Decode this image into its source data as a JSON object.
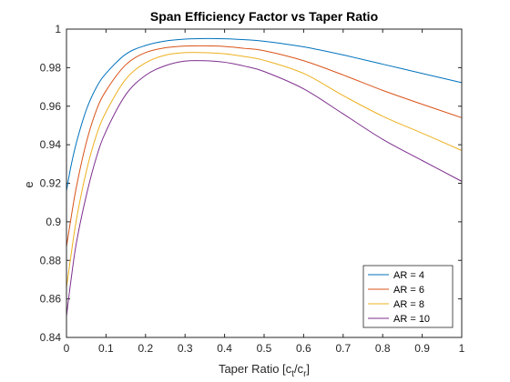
{
  "chart_data": {
    "type": "line",
    "title": "Span Efficiency Factor vs Taper Ratio",
    "xlabel_main": "Taper Ratio [c",
    "xlabel_sub1": "t",
    "xlabel_mid": "/c",
    "xlabel_sub2": "r",
    "xlabel_end": "]",
    "ylabel": "e",
    "xlim": [
      0,
      1
    ],
    "ylim": [
      0.84,
      1
    ],
    "xticks": [
      0,
      0.1,
      0.2,
      0.3,
      0.4,
      0.5,
      0.6,
      0.7,
      0.8,
      0.9,
      1
    ],
    "yticks": [
      0.84,
      0.86,
      0.88,
      0.9,
      0.92,
      0.94,
      0.96,
      0.98,
      1
    ],
    "xtick_labels": [
      "0",
      "0.1",
      "0.2",
      "0.3",
      "0.4",
      "0.5",
      "0.6",
      "0.7",
      "0.8",
      "0.9",
      "1"
    ],
    "ytick_labels": [
      "0.84",
      "0.86",
      "0.88",
      "0.9",
      "0.92",
      "0.94",
      "0.96",
      "0.98",
      "1"
    ],
    "grid": false,
    "legend_position": "bottom-right",
    "x": [
      0,
      0.01,
      0.025,
      0.05,
      0.075,
      0.1,
      0.15,
      0.2,
      0.25,
      0.3,
      0.35,
      0.4,
      0.45,
      0.5,
      0.6,
      0.7,
      0.8,
      0.9,
      1.0
    ],
    "series": [
      {
        "name": "AR = 4",
        "color": "#0072BD",
        "values": [
          0.916,
          0.9275,
          0.941,
          0.958,
          0.9695,
          0.977,
          0.987,
          0.9915,
          0.9938,
          0.9948,
          0.9951,
          0.995,
          0.9945,
          0.9937,
          0.9908,
          0.9866,
          0.9818,
          0.977,
          0.9722
        ]
      },
      {
        "name": "AR = 6",
        "color": "#D95319",
        "values": [
          0.887,
          0.9,
          0.918,
          0.941,
          0.9575,
          0.968,
          0.9815,
          0.9878,
          0.9903,
          0.9912,
          0.9913,
          0.991,
          0.99,
          0.9888,
          0.9836,
          0.9762,
          0.9682,
          0.961,
          0.954
        ]
      },
      {
        "name": "AR = 8",
        "color": "#EDB120",
        "values": [
          0.866,
          0.8805,
          0.901,
          0.926,
          0.9445,
          0.957,
          0.974,
          0.9825,
          0.9865,
          0.9878,
          0.9878,
          0.9872,
          0.9858,
          0.9838,
          0.977,
          0.9655,
          0.9548,
          0.946,
          0.937
        ]
      },
      {
        "name": "AR = 10",
        "color": "#7E2F8E",
        "values": [
          0.851,
          0.8675,
          0.889,
          0.9135,
          0.933,
          0.947,
          0.966,
          0.976,
          0.981,
          0.9834,
          0.9836,
          0.9828,
          0.9808,
          0.978,
          0.969,
          0.956,
          0.9428,
          0.9318,
          0.921
        ]
      }
    ]
  }
}
